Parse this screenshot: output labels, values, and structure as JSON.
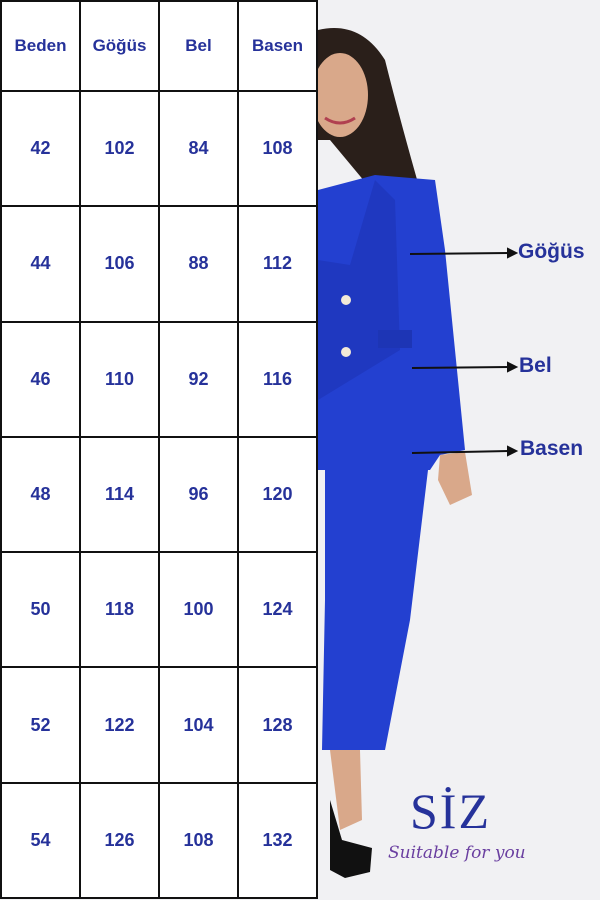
{
  "table": {
    "headers": [
      "Beden",
      "Göğüs",
      "Bel",
      "Basen"
    ],
    "rows": [
      [
        "42",
        "102",
        "84",
        "108"
      ],
      [
        "44",
        "106",
        "88",
        "112"
      ],
      [
        "46",
        "110",
        "92",
        "116"
      ],
      [
        "48",
        "114",
        "96",
        "120"
      ],
      [
        "50",
        "118",
        "100",
        "124"
      ],
      [
        "52",
        "122",
        "104",
        "128"
      ],
      [
        "54",
        "126",
        "108",
        "132"
      ]
    ]
  },
  "annotations": {
    "chest": "Göğüs",
    "waist": "Bel",
    "hip": "Basen"
  },
  "brand": {
    "name": "SİZ",
    "tagline": "Suitable for you"
  },
  "colors": {
    "text": "#26329a",
    "suit": "#2340d0",
    "tagline": "#6a3fa0"
  }
}
